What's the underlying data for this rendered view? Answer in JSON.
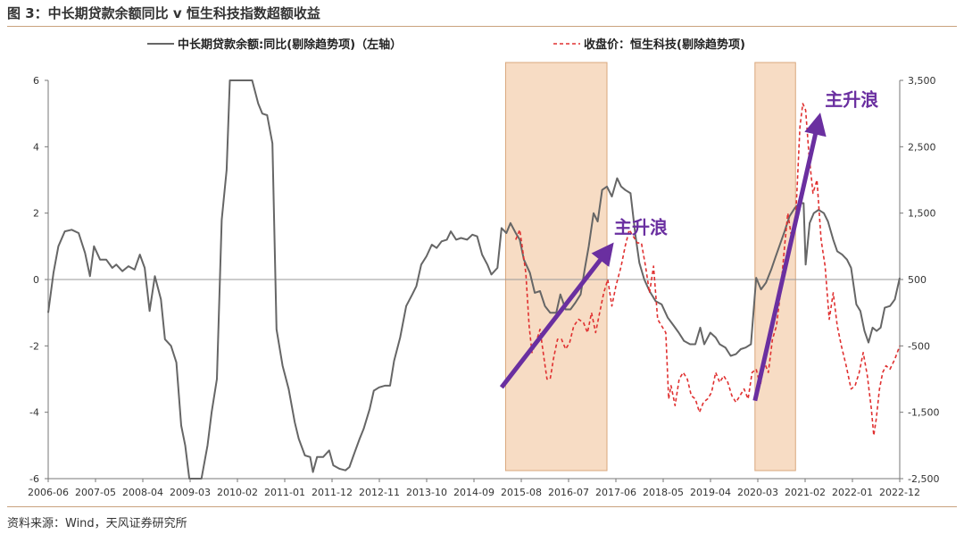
{
  "title": "图 3：中长期贷款余额同比 v 恒生科技指数超额收益",
  "source": "资料来源：Wind，天风证券研究所",
  "chart_data": {
    "type": "line",
    "x_ticks": [
      "2006-06",
      "2007-05",
      "2008-04",
      "2009-03",
      "2010-02",
      "2011-01",
      "2011-12",
      "2012-11",
      "2013-10",
      "2014-09",
      "2015-08",
      "2016-07",
      "2017-06",
      "2018-05",
      "2019-04",
      "2020-03",
      "2021-02",
      "2022-01",
      "2022-12"
    ],
    "y_left": {
      "min": -6,
      "max": 6,
      "ticks": [
        6,
        4,
        2,
        0,
        -2,
        -4,
        -6
      ],
      "labels": [
        "6",
        "4",
        "2",
        "0",
        "-2",
        "-4",
        "-6"
      ]
    },
    "y_right": {
      "min": -2500,
      "max": 3500,
      "ticks": [
        3500,
        2500,
        1500,
        500,
        -500,
        -1500,
        -2500
      ],
      "labels": [
        "3,500",
        "2,500",
        "1,500",
        "500",
        "-500",
        "-1,500",
        "-2,500"
      ]
    },
    "series": [
      {
        "name": "中长期贷款余额:同比(剔除趋势项)（左轴）",
        "axis": "left",
        "color": "#666666",
        "style": "solid",
        "points": [
          [
            2006.42,
            -1.0
          ],
          [
            2006.55,
            0.2
          ],
          [
            2006.67,
            1.0
          ],
          [
            2006.83,
            1.45
          ],
          [
            2007.0,
            1.5
          ],
          [
            2007.17,
            1.4
          ],
          [
            2007.33,
            0.8
          ],
          [
            2007.45,
            0.1
          ],
          [
            2007.55,
            1.0
          ],
          [
            2007.7,
            0.6
          ],
          [
            2007.85,
            0.6
          ],
          [
            2008.0,
            0.35
          ],
          [
            2008.1,
            0.45
          ],
          [
            2008.25,
            0.25
          ],
          [
            2008.4,
            0.4
          ],
          [
            2008.55,
            0.3
          ],
          [
            2008.68,
            0.75
          ],
          [
            2008.8,
            0.35
          ],
          [
            2008.92,
            -0.95
          ],
          [
            2009.05,
            0.1
          ],
          [
            2009.2,
            -0.6
          ],
          [
            2009.3,
            -1.8
          ],
          [
            2009.45,
            -2.0
          ],
          [
            2009.58,
            -2.5
          ],
          [
            2009.7,
            -4.4
          ],
          [
            2009.8,
            -5.0
          ],
          [
            2009.9,
            -6.0
          ],
          [
            2010.2,
            -6.0
          ],
          [
            2010.35,
            -5.0
          ],
          [
            2010.45,
            -4.0
          ],
          [
            2010.58,
            -3.0
          ],
          [
            2010.7,
            1.8
          ],
          [
            2010.82,
            3.3
          ],
          [
            2010.9,
            6.0
          ],
          [
            2011.45,
            6.0
          ],
          [
            2011.6,
            5.3
          ],
          [
            2011.7,
            5.0
          ],
          [
            2011.82,
            4.95
          ],
          [
            2011.95,
            4.1
          ],
          [
            2012.05,
            -1.5
          ],
          [
            2012.2,
            -2.6
          ],
          [
            2012.35,
            -3.3
          ],
          [
            2012.5,
            -4.3
          ],
          [
            2012.6,
            -4.8
          ],
          [
            2012.75,
            -5.3
          ],
          [
            2012.88,
            -5.35
          ],
          [
            2012.95,
            -5.8
          ],
          [
            2013.05,
            -5.35
          ],
          [
            2013.2,
            -5.35
          ],
          [
            2013.35,
            -5.15
          ],
          [
            2013.45,
            -5.6
          ],
          [
            2013.6,
            -5.7
          ],
          [
            2013.75,
            -5.75
          ],
          [
            2013.85,
            -5.65
          ],
          [
            2013.95,
            -5.3
          ],
          [
            2014.1,
            -4.8
          ],
          [
            2014.2,
            -4.5
          ],
          [
            2014.35,
            -3.9
          ],
          [
            2014.45,
            -3.35
          ],
          [
            2014.58,
            -3.25
          ],
          [
            2014.72,
            -3.2
          ],
          [
            2014.85,
            -3.2
          ],
          [
            2014.95,
            -2.45
          ],
          [
            2015.1,
            -1.75
          ],
          [
            2015.25,
            -0.8
          ],
          [
            2015.4,
            -0.45
          ],
          [
            2015.5,
            -0.2
          ],
          [
            2015.62,
            0.45
          ],
          [
            2015.75,
            0.7
          ],
          [
            2015.88,
            1.05
          ],
          [
            2016.0,
            0.95
          ],
          [
            2016.12,
            1.15
          ],
          [
            2016.25,
            1.2
          ],
          [
            2016.35,
            1.45
          ],
          [
            2016.48,
            1.2
          ],
          [
            2016.6,
            1.25
          ],
          [
            2016.75,
            1.2
          ],
          [
            2016.88,
            1.35
          ],
          [
            2017.0,
            1.3
          ],
          [
            2017.12,
            0.75
          ],
          [
            2017.25,
            0.45
          ],
          [
            2017.35,
            0.15
          ],
          [
            2017.5,
            0.35
          ],
          [
            2017.6,
            1.55
          ],
          [
            2017.72,
            1.4
          ],
          [
            2017.82,
            1.7
          ],
          [
            2017.95,
            1.4
          ],
          [
            2018.05,
            1.2
          ],
          [
            2018.15,
            0.6
          ],
          [
            2018.3,
            0.2
          ],
          [
            2018.42,
            -0.4
          ],
          [
            2018.55,
            -0.35
          ],
          [
            2018.67,
            -0.8
          ],
          [
            2018.8,
            -1.0
          ],
          [
            2018.95,
            -1.0
          ],
          [
            2019.05,
            -0.45
          ],
          [
            2019.18,
            -0.9
          ],
          [
            2019.3,
            -0.9
          ],
          [
            2019.42,
            -0.7
          ],
          [
            2019.55,
            -0.45
          ],
          [
            2019.65,
            0.3
          ],
          [
            2019.75,
            1.0
          ],
          [
            2019.87,
            2.0
          ],
          [
            2019.97,
            1.75
          ],
          [
            2020.08,
            2.7
          ],
          [
            2020.2,
            2.8
          ],
          [
            2020.32,
            2.5
          ],
          [
            2020.45,
            3.05
          ],
          [
            2020.55,
            2.8
          ],
          [
            2020.65,
            2.7
          ],
          [
            2020.78,
            2.6
          ],
          [
            2020.9,
            1.35
          ],
          [
            2021.0,
            0.5
          ],
          [
            2021.12,
            0.0
          ],
          [
            2021.25,
            -0.35
          ],
          [
            2021.4,
            -0.65
          ],
          [
            2021.55,
            -0.75
          ],
          [
            2021.7,
            -1.15
          ],
          [
            2021.85,
            -1.4
          ],
          [
            2021.97,
            -1.6
          ],
          [
            2022.1,
            -1.85
          ],
          [
            2022.25,
            -1.95
          ],
          [
            2022.38,
            -1.95
          ],
          [
            2022.5,
            -1.45
          ],
          [
            2022.6,
            -1.95
          ],
          [
            2022.75,
            -1.6
          ],
          [
            2022.88,
            -1.75
          ],
          [
            2022.98,
            -1.95
          ],
          [
            2023.12,
            -2.05
          ],
          [
            2023.25,
            -2.3
          ],
          [
            2023.38,
            -2.25
          ],
          [
            2023.5,
            -2.1
          ],
          [
            2023.62,
            -2.05
          ],
          [
            2023.75,
            -1.95
          ],
          [
            2023.88,
            0.05
          ],
          [
            2024.0,
            -0.3
          ],
          [
            2024.12,
            -0.1
          ],
          [
            2024.25,
            0.3
          ],
          [
            2024.35,
            0.65
          ],
          [
            2024.45,
            1.0
          ],
          [
            2024.58,
            1.45
          ],
          [
            2024.7,
            1.9
          ],
          [
            2024.83,
            2.15
          ],
          [
            2024.95,
            2.3
          ],
          [
            2025.05,
            2.3
          ],
          [
            2025.1,
            0.45
          ],
          [
            2025.2,
            1.7
          ],
          [
            2025.3,
            2.0
          ],
          [
            2025.42,
            2.1
          ],
          [
            2025.55,
            2.0
          ],
          [
            2025.65,
            1.75
          ],
          [
            2025.78,
            1.2
          ],
          [
            2025.88,
            0.85
          ],
          [
            2026.0,
            0.75
          ],
          [
            2026.12,
            0.6
          ],
          [
            2026.22,
            0.35
          ],
          [
            2026.35,
            -0.75
          ],
          [
            2026.45,
            -0.95
          ],
          [
            2026.55,
            -1.55
          ],
          [
            2026.65,
            -1.9
          ],
          [
            2026.75,
            -1.45
          ],
          [
            2026.85,
            -1.55
          ],
          [
            2026.95,
            -1.45
          ],
          [
            2027.05,
            -0.85
          ],
          [
            2027.18,
            -0.8
          ],
          [
            2027.3,
            -0.6
          ],
          [
            2027.42,
            0.05
          ]
        ]
      },
      {
        "name": "收盘价：恒生科技(剔除趋势项)",
        "axis": "right",
        "color": "#e03030",
        "style": "dashed",
        "points": [
          [
            2017.95,
            1100
          ],
          [
            2018.05,
            1250
          ],
          [
            2018.12,
            950
          ],
          [
            2018.2,
            600
          ],
          [
            2018.28,
            -200
          ],
          [
            2018.35,
            -600
          ],
          [
            2018.45,
            -450
          ],
          [
            2018.55,
            -250
          ],
          [
            2018.65,
            -700
          ],
          [
            2018.72,
            -1000
          ],
          [
            2018.8,
            -1000
          ],
          [
            2018.88,
            -700
          ],
          [
            2018.98,
            -400
          ],
          [
            2019.08,
            -400
          ],
          [
            2019.18,
            -550
          ],
          [
            2019.28,
            -450
          ],
          [
            2019.38,
            -200
          ],
          [
            2019.5,
            -100
          ],
          [
            2019.62,
            -150
          ],
          [
            2019.72,
            -300
          ],
          [
            2019.82,
            0
          ],
          [
            2019.92,
            -300
          ],
          [
            2020.02,
            0
          ],
          [
            2020.12,
            300
          ],
          [
            2020.22,
            500
          ],
          [
            2020.32,
            100
          ],
          [
            2020.42,
            400
          ],
          [
            2020.55,
            700
          ],
          [
            2020.65,
            1000
          ],
          [
            2020.75,
            1250
          ],
          [
            2020.85,
            1150
          ],
          [
            2020.95,
            1050
          ],
          [
            2021.05,
            1050
          ],
          [
            2021.15,
            700
          ],
          [
            2021.25,
            300
          ],
          [
            2021.35,
            700
          ],
          [
            2021.45,
            -100
          ],
          [
            2021.55,
            -200
          ],
          [
            2021.65,
            -300
          ],
          [
            2021.72,
            -1300
          ],
          [
            2021.78,
            -1100
          ],
          [
            2021.88,
            -1400
          ],
          [
            2021.98,
            -1000
          ],
          [
            2022.08,
            -900
          ],
          [
            2022.18,
            -1000
          ],
          [
            2022.28,
            -1250
          ],
          [
            2022.38,
            -1300
          ],
          [
            2022.48,
            -1500
          ],
          [
            2022.58,
            -1350
          ],
          [
            2022.68,
            -1300
          ],
          [
            2022.78,
            -1200
          ],
          [
            2022.88,
            -900
          ],
          [
            2022.98,
            -1050
          ],
          [
            2023.08,
            -950
          ],
          [
            2023.18,
            -1050
          ],
          [
            2023.28,
            -1250
          ],
          [
            2023.38,
            -1350
          ],
          [
            2023.48,
            -1250
          ],
          [
            2023.58,
            -1150
          ],
          [
            2023.68,
            -1300
          ],
          [
            2023.78,
            -900
          ],
          [
            2023.88,
            -850
          ],
          [
            2023.98,
            -1100
          ],
          [
            2024.08,
            -750
          ],
          [
            2024.18,
            -900
          ],
          [
            2024.28,
            -400
          ],
          [
            2024.38,
            -200
          ],
          [
            2024.48,
            300
          ],
          [
            2024.58,
            1000
          ],
          [
            2024.66,
            1500
          ],
          [
            2024.76,
            1100
          ],
          [
            2024.86,
            1500
          ],
          [
            2024.96,
            2800
          ],
          [
            2025.03,
            3150
          ],
          [
            2025.1,
            3050
          ],
          [
            2025.18,
            2400
          ],
          [
            2025.28,
            1800
          ],
          [
            2025.38,
            2000
          ],
          [
            2025.48,
            1100
          ],
          [
            2025.58,
            700
          ],
          [
            2025.68,
            -100
          ],
          [
            2025.78,
            300
          ],
          [
            2025.88,
            -200
          ],
          [
            2025.98,
            -500
          ],
          [
            2026.1,
            -800
          ],
          [
            2026.22,
            -1150
          ],
          [
            2026.32,
            -1100
          ],
          [
            2026.42,
            -900
          ],
          [
            2026.52,
            -600
          ],
          [
            2026.62,
            -950
          ],
          [
            2026.72,
            -1450
          ],
          [
            2026.78,
            -1850
          ],
          [
            2026.84,
            -1600
          ],
          [
            2026.92,
            -1150
          ],
          [
            2027.0,
            -900
          ],
          [
            2027.08,
            -800
          ],
          [
            2027.18,
            -850
          ],
          [
            2027.3,
            -700
          ],
          [
            2027.42,
            -500
          ]
        ]
      }
    ],
    "annotations": [
      {
        "text": "主升浪",
        "arrow_from": [
          2017.6,
          -3.25
        ],
        "arrow_to": [
          2020.2,
          0.85
        ]
      },
      {
        "text": "主升浪",
        "arrow_from": [
          2023.85,
          -3.65
        ],
        "arrow_to": [
          2025.4,
          4.7
        ]
      }
    ],
    "highlight_ranges": [
      [
        2017.7,
        2020.2
      ],
      [
        2023.85,
        2024.85
      ]
    ]
  }
}
